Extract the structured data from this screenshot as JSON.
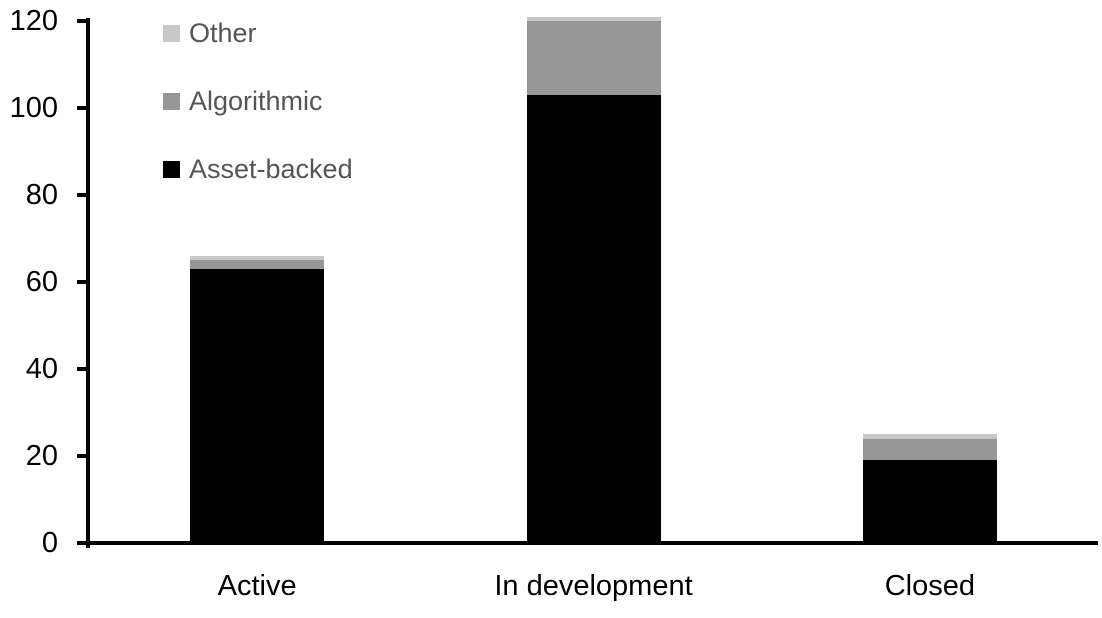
{
  "chart_data": {
    "type": "bar",
    "stacked": true,
    "categories": [
      "Active",
      "In development",
      "Closed"
    ],
    "series": [
      {
        "name": "Asset-backed",
        "color": "#000000",
        "values": [
          63,
          103,
          19
        ]
      },
      {
        "name": "Algorithmic",
        "color": "#969696",
        "values": [
          2,
          17,
          5
        ]
      },
      {
        "name": "Other",
        "color": "#c8c8c8",
        "values": [
          1,
          1,
          1
        ]
      }
    ],
    "totals": [
      66,
      121,
      25
    ],
    "title": "",
    "xlabel": "",
    "ylabel": "",
    "ylim": [
      0,
      120
    ],
    "yticks": [
      0,
      20,
      40,
      60,
      80,
      100,
      120
    ],
    "grid": false,
    "legend_position": "top-left"
  },
  "legend": {
    "items": [
      {
        "label": "Other",
        "color": "#c8c8c8"
      },
      {
        "label": "Algorithmic",
        "color": "#969696"
      },
      {
        "label": "Asset-backed",
        "color": "#000000"
      }
    ]
  },
  "colors": {
    "axis": "#000000",
    "tick_label": "#000000",
    "legend_text": "#555555",
    "background": "#ffffff"
  }
}
